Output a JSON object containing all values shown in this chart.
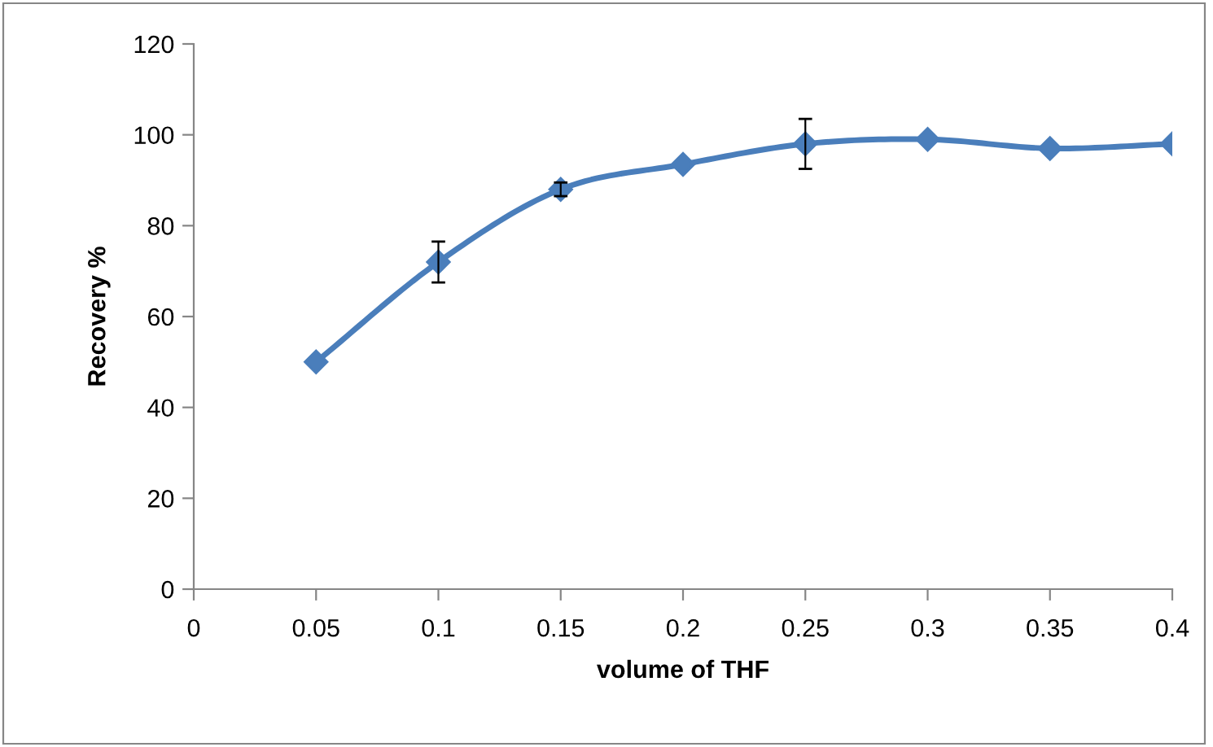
{
  "chart_data": {
    "type": "line",
    "xlabel": "volume of THF",
    "ylabel": "Recovery %",
    "x": [
      0.05,
      0.1,
      0.15,
      0.2,
      0.25,
      0.3,
      0.35,
      0.4
    ],
    "series": [
      {
        "color": "#4a7ebb",
        "values": [
          50,
          72,
          88,
          93.5,
          98,
          99,
          97,
          98
        ],
        "errors": [
          null,
          4.5,
          1.5,
          null,
          5.5,
          null,
          null,
          null
        ]
      }
    ],
    "xlim": [
      0,
      0.4
    ],
    "xticks": [
      0,
      0.05,
      0.1,
      0.15,
      0.2,
      0.25,
      0.3,
      0.35,
      0.4
    ],
    "ylim": [
      0,
      120
    ],
    "yticks": [
      0,
      20,
      40,
      60,
      80,
      100,
      120
    ],
    "grid": false,
    "legend": false,
    "marker": "diamond",
    "line_style": "solid"
  }
}
